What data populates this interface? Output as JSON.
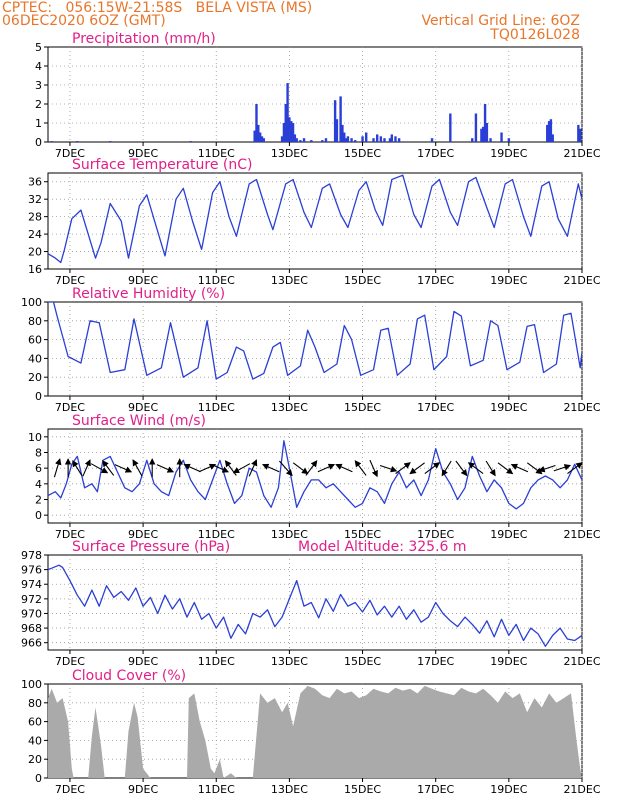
{
  "header": {
    "left_line1": "CPTEC:   056:15W-21:58S   BELA VISTA (MS)",
    "left_line2": "06DEC2020 6OZ (GMT)",
    "right_line1": "Vertical Grid Line: 6OZ",
    "right_line2": "TQ0126L028"
  },
  "colors": {
    "header": "#e8762b",
    "title": "#e0208a",
    "line": "#2a3fd6",
    "cloud": "#aaaaaa",
    "grid": "#9a9a9a",
    "arrow": "#000000"
  },
  "x_axis": {
    "range_days": [
      6.4,
      21.0
    ],
    "ticks": [
      {
        "day": 7,
        "label": "7DEC"
      },
      {
        "day": 9,
        "label": "9DEC"
      },
      {
        "day": 11,
        "label": "11DEC"
      },
      {
        "day": 13,
        "label": "13DEC"
      },
      {
        "day": 15,
        "label": "15DEC"
      },
      {
        "day": 17,
        "label": "17DEC"
      },
      {
        "day": 19,
        "label": "19DEC"
      },
      {
        "day": 21,
        "label": "21DEC"
      }
    ]
  },
  "chart_data": [
    {
      "id": "precip",
      "type": "bar",
      "title": "Precipitation (mm/h)",
      "ylim": [
        0,
        5
      ],
      "yticks": [
        0,
        1,
        2,
        3,
        4,
        5
      ],
      "x": [
        6.5,
        7.2,
        8.1,
        10.3,
        12.05,
        12.1,
        12.15,
        12.2,
        12.25,
        12.3,
        12.8,
        12.85,
        12.9,
        12.95,
        13.0,
        13.05,
        13.1,
        13.15,
        13.2,
        13.3,
        13.4,
        13.6,
        13.9,
        14.0,
        14.25,
        14.3,
        14.4,
        14.45,
        14.5,
        14.55,
        14.6,
        14.7,
        14.8,
        15.0,
        15.1,
        15.3,
        15.4,
        15.5,
        15.6,
        15.75,
        15.8,
        15.9,
        16.0,
        16.9,
        17.4,
        18.0,
        18.1,
        18.25,
        18.3,
        18.35,
        18.4,
        18.5,
        18.8,
        19.0,
        20.05,
        20.1,
        20.15,
        20.2,
        20.9,
        20.95
      ],
      "values": [
        0.05,
        0.05,
        0.05,
        0.05,
        0.6,
        2.0,
        0.9,
        0.5,
        0.3,
        0.2,
        0.3,
        1.0,
        2.0,
        3.1,
        1.3,
        1.1,
        1.0,
        0.4,
        0.2,
        0.1,
        0.2,
        0.1,
        0.1,
        0.2,
        2.2,
        1.2,
        2.4,
        0.9,
        0.5,
        0.2,
        0.3,
        0.2,
        0.1,
        0.3,
        0.5,
        0.2,
        0.4,
        0.3,
        0.2,
        0.2,
        0.4,
        0.3,
        0.2,
        0.2,
        1.5,
        0.2,
        1.5,
        0.7,
        0.8,
        2.0,
        1.0,
        0.2,
        0.5,
        0.2,
        0.9,
        1.1,
        1.2,
        0.4,
        0.9,
        0.7
      ]
    },
    {
      "id": "temp",
      "type": "line",
      "title": "Surface Temperature (nC)",
      "ylim": [
        16,
        38
      ],
      "yticks": [
        16,
        20,
        24,
        28,
        32,
        36
      ],
      "x": [
        6.4,
        6.6,
        6.75,
        6.85,
        7.05,
        7.3,
        7.7,
        7.85,
        8.1,
        8.4,
        8.6,
        8.9,
        9.1,
        9.35,
        9.6,
        9.9,
        10.1,
        10.35,
        10.6,
        10.9,
        11.1,
        11.35,
        11.55,
        11.9,
        12.1,
        12.4,
        12.55,
        12.9,
        13.1,
        13.4,
        13.6,
        13.9,
        14.1,
        14.4,
        14.6,
        14.9,
        15.1,
        15.35,
        15.55,
        15.8,
        16.1,
        16.4,
        16.6,
        16.9,
        17.1,
        17.4,
        17.6,
        17.9,
        18.1,
        18.4,
        18.6,
        18.9,
        19.1,
        19.4,
        19.6,
        19.9,
        20.1,
        20.35,
        20.6,
        20.9,
        21.0
      ],
      "values": [
        19.5,
        18.5,
        17.5,
        20.5,
        27.5,
        29.5,
        18.5,
        22.0,
        31.0,
        27.0,
        18.5,
        30.5,
        33.0,
        26.0,
        19.0,
        32.0,
        34.5,
        27.0,
        20.5,
        33.5,
        36.0,
        28.0,
        23.5,
        35.5,
        36.5,
        28.5,
        25.0,
        35.5,
        36.5,
        29.0,
        25.5,
        34.5,
        35.5,
        28.5,
        25.5,
        34.0,
        36.0,
        29.5,
        26.0,
        36.5,
        37.5,
        28.5,
        25.5,
        35.0,
        36.5,
        29.0,
        26.0,
        36.0,
        37.0,
        30.0,
        25.5,
        35.5,
        36.5,
        28.0,
        23.5,
        35.0,
        36.0,
        27.5,
        23.5,
        35.5,
        32.0
      ]
    },
    {
      "id": "rh",
      "type": "line",
      "title": "Relative Humidity (%)",
      "ylim": [
        0,
        100
      ],
      "yticks": [
        0,
        20,
        40,
        60,
        80,
        100
      ],
      "x": [
        6.4,
        6.55,
        6.65,
        6.95,
        7.3,
        7.55,
        7.8,
        8.1,
        8.5,
        8.75,
        9.1,
        9.5,
        9.75,
        10.1,
        10.5,
        10.75,
        11.0,
        11.3,
        11.55,
        11.75,
        12.0,
        12.3,
        12.55,
        12.75,
        12.95,
        13.3,
        13.5,
        13.7,
        13.95,
        14.3,
        14.5,
        14.7,
        14.95,
        15.3,
        15.5,
        15.7,
        15.95,
        16.3,
        16.5,
        16.7,
        16.95,
        17.3,
        17.5,
        17.7,
        17.95,
        18.3,
        18.5,
        18.7,
        18.95,
        19.3,
        19.5,
        19.7,
        19.95,
        20.3,
        20.5,
        20.7,
        20.95,
        21.0
      ],
      "values": [
        100,
        100,
        85,
        42,
        35,
        80,
        78,
        25,
        28,
        82,
        22,
        30,
        78,
        20,
        30,
        80,
        18,
        25,
        52,
        48,
        18,
        24,
        52,
        57,
        22,
        32,
        70,
        52,
        25,
        34,
        75,
        60,
        22,
        28,
        70,
        72,
        22,
        34,
        82,
        86,
        28,
        42,
        90,
        85,
        32,
        38,
        80,
        75,
        28,
        36,
        74,
        76,
        25,
        34,
        86,
        88,
        30,
        47
      ]
    },
    {
      "id": "wind",
      "type": "line",
      "title": "Surface Wind (m/s)",
      "ylim": [
        -1,
        11
      ],
      "yticks": [
        0,
        2,
        4,
        6,
        8,
        10
      ],
      "x": [
        6.4,
        6.6,
        6.75,
        6.9,
        7.05,
        7.2,
        7.4,
        7.6,
        7.75,
        7.9,
        8.1,
        8.3,
        8.5,
        8.7,
        8.9,
        9.1,
        9.3,
        9.5,
        9.7,
        9.9,
        10.1,
        10.3,
        10.5,
        10.7,
        10.9,
        11.1,
        11.3,
        11.5,
        11.7,
        11.9,
        12.1,
        12.3,
        12.5,
        12.7,
        12.85,
        13.0,
        13.2,
        13.4,
        13.6,
        13.8,
        14.0,
        14.2,
        14.4,
        14.6,
        14.8,
        15.0,
        15.2,
        15.4,
        15.6,
        15.8,
        16.0,
        16.2,
        16.4,
        16.6,
        16.8,
        17.0,
        17.2,
        17.4,
        17.6,
        17.8,
        18.0,
        18.2,
        18.4,
        18.6,
        18.8,
        19.0,
        19.2,
        19.4,
        19.6,
        19.8,
        20.0,
        20.2,
        20.4,
        20.6,
        20.8,
        21.0
      ],
      "values": [
        2.5,
        3.0,
        2.2,
        4.0,
        6.5,
        7.5,
        3.5,
        4.0,
        3.0,
        7.0,
        7.5,
        5.5,
        3.5,
        3.0,
        4.0,
        7.0,
        4.0,
        3.0,
        2.5,
        5.5,
        7.0,
        4.5,
        3.0,
        2.0,
        4.5,
        7.0,
        4.0,
        1.5,
        2.5,
        6.0,
        5.5,
        2.5,
        1.0,
        3.5,
        9.5,
        6.0,
        1.0,
        3.0,
        4.5,
        4.5,
        3.5,
        4.0,
        3.0,
        2.0,
        1.0,
        1.5,
        3.5,
        3.0,
        1.5,
        4.0,
        5.5,
        3.5,
        4.5,
        2.5,
        4.5,
        8.5,
        5.5,
        4.0,
        2.0,
        3.5,
        7.5,
        5.0,
        3.0,
        4.5,
        3.5,
        1.5,
        0.8,
        1.5,
        3.5,
        4.5,
        5.0,
        4.5,
        3.5,
        4.5,
        6.5,
        4.5
      ],
      "arrows": [
        {
          "day": 6.65,
          "dx": 0.3,
          "dy": -1.0
        },
        {
          "day": 6.95,
          "dx": 0.0,
          "dy": -1.0
        },
        {
          "day": 7.2,
          "dx": -0.5,
          "dy": -0.8
        },
        {
          "day": 7.45,
          "dx": 0.4,
          "dy": -0.9
        },
        {
          "day": 7.8,
          "dx": 0.9,
          "dy": 0.5
        },
        {
          "day": 8.05,
          "dx": -0.6,
          "dy": -0.8
        },
        {
          "day": 8.45,
          "dx": 0.9,
          "dy": 0.4
        },
        {
          "day": 8.85,
          "dx": -0.5,
          "dy": -0.9
        },
        {
          "day": 9.25,
          "dx": 0.0,
          "dy": -1.0
        },
        {
          "day": 9.6,
          "dx": 0.9,
          "dy": 0.4
        },
        {
          "day": 10.0,
          "dx": 0.0,
          "dy": -1.0
        },
        {
          "day": 10.35,
          "dx": -0.9,
          "dy": -0.4
        },
        {
          "day": 10.75,
          "dx": 0.9,
          "dy": -0.4
        },
        {
          "day": 11.1,
          "dx": 0.9,
          "dy": 0.4
        },
        {
          "day": 11.4,
          "dx": -0.6,
          "dy": -0.8
        },
        {
          "day": 11.7,
          "dx": -0.9,
          "dy": 0.5
        },
        {
          "day": 12.0,
          "dx": 0.4,
          "dy": -0.9
        },
        {
          "day": 12.5,
          "dx": -0.9,
          "dy": -0.4
        },
        {
          "day": 12.9,
          "dx": 0.7,
          "dy": 0.8
        },
        {
          "day": 13.3,
          "dx": 0.8,
          "dy": 0.6
        },
        {
          "day": 13.6,
          "dx": 0.6,
          "dy": -0.8
        },
        {
          "day": 14.0,
          "dx": 0.9,
          "dy": -0.4
        },
        {
          "day": 14.5,
          "dx": -0.9,
          "dy": -0.4
        },
        {
          "day": 14.95,
          "dx": -0.6,
          "dy": -0.8
        },
        {
          "day": 15.3,
          "dx": 0.4,
          "dy": 0.9
        },
        {
          "day": 15.7,
          "dx": 0.9,
          "dy": 0.3
        },
        {
          "day": 16.1,
          "dx": 0.8,
          "dy": -0.6
        },
        {
          "day": 16.5,
          "dx": -0.8,
          "dy": 0.6
        },
        {
          "day": 16.9,
          "dx": 0.8,
          "dy": -0.6
        },
        {
          "day": 17.3,
          "dx": -0.5,
          "dy": 0.8
        },
        {
          "day": 17.7,
          "dx": 0.6,
          "dy": 0.8
        },
        {
          "day": 18.1,
          "dx": -0.8,
          "dy": -0.6
        },
        {
          "day": 18.5,
          "dx": 0.5,
          "dy": 0.8
        },
        {
          "day": 18.9,
          "dx": 0.8,
          "dy": 0.6
        },
        {
          "day": 19.3,
          "dx": -0.9,
          "dy": -0.4
        },
        {
          "day": 19.7,
          "dx": 0.8,
          "dy": 0.6
        },
        {
          "day": 20.05,
          "dx": -0.9,
          "dy": 0.3
        },
        {
          "day": 20.45,
          "dx": 0.9,
          "dy": -0.3
        },
        {
          "day": 20.8,
          "dx": 0.8,
          "dy": -0.6
        }
      ]
    },
    {
      "id": "pressure",
      "type": "line",
      "title": "Surface Pressure (hPa)",
      "annotation": "Model Altitude: 325.6  m",
      "ylim": [
        965,
        978
      ],
      "yticks": [
        966,
        968,
        970,
        972,
        974,
        976,
        978
      ],
      "x": [
        6.4,
        6.5,
        6.7,
        6.8,
        7.0,
        7.2,
        7.4,
        7.6,
        7.8,
        8.0,
        8.2,
        8.4,
        8.6,
        8.8,
        9.0,
        9.2,
        9.4,
        9.6,
        9.8,
        10.0,
        10.2,
        10.4,
        10.6,
        10.8,
        11.0,
        11.2,
        11.4,
        11.6,
        11.8,
        12.0,
        12.2,
        12.4,
        12.6,
        12.8,
        13.0,
        13.2,
        13.4,
        13.6,
        13.8,
        14.0,
        14.2,
        14.4,
        14.6,
        14.8,
        15.0,
        15.2,
        15.4,
        15.6,
        15.8,
        16.0,
        16.2,
        16.4,
        16.6,
        16.8,
        17.0,
        17.2,
        17.4,
        17.6,
        17.8,
        18.0,
        18.2,
        18.4,
        18.6,
        18.8,
        19.0,
        19.2,
        19.4,
        19.6,
        19.8,
        20.0,
        20.2,
        20.4,
        20.6,
        20.8,
        21.0
      ],
      "values": [
        976.0,
        976.2,
        976.6,
        976.3,
        974.5,
        972.5,
        971.0,
        973.2,
        971.0,
        973.8,
        972.2,
        973.0,
        971.8,
        973.5,
        971.0,
        972.2,
        970.0,
        972.5,
        970.6,
        972.0,
        969.5,
        971.5,
        969.2,
        970.0,
        968.0,
        969.5,
        966.6,
        968.5,
        967.2,
        970.0,
        969.5,
        970.5,
        968.2,
        969.5,
        972.0,
        974.5,
        971.0,
        971.5,
        969.4,
        972.0,
        970.3,
        972.6,
        971.0,
        971.5,
        970.2,
        971.8,
        969.8,
        971.0,
        969.5,
        971.0,
        969.2,
        970.5,
        968.8,
        969.5,
        971.5,
        970.0,
        969.0,
        968.2,
        969.5,
        968.5,
        967.3,
        969.0,
        966.8,
        969.2,
        967.0,
        968.5,
        966.3,
        968.0,
        967.2,
        965.5,
        967.0,
        968.0,
        966.5,
        966.3,
        967.0
      ]
    },
    {
      "id": "cloud",
      "type": "area",
      "title": "Cloud Cover (%)",
      "ylim": [
        0,
        100
      ],
      "yticks": [
        0,
        20,
        40,
        60,
        80,
        100
      ],
      "x": [
        6.4,
        6.5,
        6.65,
        6.8,
        6.95,
        7.05,
        7.1,
        7.3,
        7.5,
        7.6,
        7.7,
        7.85,
        7.95,
        8.1,
        8.3,
        8.5,
        8.6,
        8.75,
        8.85,
        9.0,
        9.2,
        9.4,
        9.6,
        9.8,
        10.0,
        10.2,
        10.25,
        10.4,
        10.55,
        10.7,
        10.85,
        10.95,
        11.1,
        11.2,
        11.4,
        11.55,
        11.6,
        11.8,
        12.0,
        12.2,
        12.4,
        12.6,
        12.8,
        12.95,
        13.1,
        13.3,
        13.5,
        13.7,
        13.9,
        14.1,
        14.3,
        14.5,
        14.7,
        14.9,
        15.1,
        15.3,
        15.5,
        15.7,
        15.9,
        16.1,
        16.3,
        16.5,
        16.7,
        16.9,
        17.1,
        17.3,
        17.5,
        17.7,
        17.9,
        18.1,
        18.3,
        18.5,
        18.7,
        18.9,
        19.1,
        19.3,
        19.5,
        19.7,
        19.9,
        20.1,
        20.3,
        20.5,
        20.7,
        20.85,
        20.95,
        21.0
      ],
      "values": [
        85,
        95,
        80,
        85,
        60,
        10,
        0,
        0,
        0,
        45,
        75,
        35,
        0,
        0,
        0,
        0,
        50,
        80,
        65,
        10,
        0,
        0,
        0,
        0,
        0,
        0,
        85,
        90,
        60,
        40,
        10,
        5,
        20,
        0,
        5,
        0,
        0,
        0,
        0,
        90,
        80,
        85,
        70,
        80,
        55,
        90,
        98,
        95,
        88,
        85,
        95,
        90,
        92,
        85,
        88,
        95,
        92,
        90,
        96,
        93,
        95,
        90,
        98,
        95,
        92,
        90,
        88,
        96,
        92,
        90,
        95,
        88,
        80,
        92,
        85,
        90,
        70,
        85,
        75,
        90,
        80,
        85,
        90,
        40,
        10,
        0
      ]
    }
  ]
}
